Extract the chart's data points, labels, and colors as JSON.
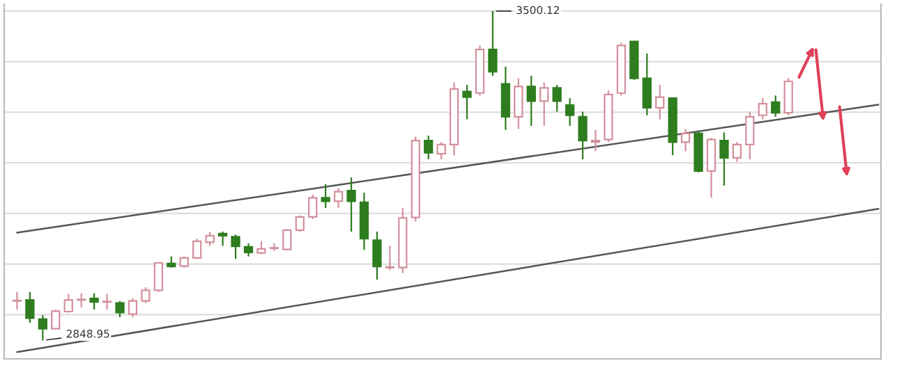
{
  "chart_data": {
    "type": "candlestick",
    "categories": [
      null,
      null,
      null,
      null,
      null,
      null,
      null,
      null,
      null,
      null,
      null,
      null,
      null,
      null,
      null,
      null,
      null,
      null,
      null,
      null,
      null,
      null,
      null,
      null,
      null,
      null,
      null,
      null,
      null,
      null,
      null,
      null,
      null,
      null,
      null,
      null,
      null,
      null,
      null,
      null,
      null,
      null,
      null,
      null,
      null,
      null,
      null,
      null,
      null,
      null,
      null,
      null,
      null,
      null,
      null,
      null,
      null,
      null,
      null,
      null,
      null,
      null,
      null,
      null,
      null,
      null,
      null,
      null
    ],
    "ohlc": [
      [
        2927,
        2945,
        2910,
        2928
      ],
      [
        2929,
        2945,
        2884,
        2893
      ],
      [
        2891,
        2899,
        2848.95,
        2872
      ],
      [
        2872,
        2910,
        2871,
        2907
      ],
      [
        2906,
        2941,
        2904,
        2929
      ],
      [
        2929,
        2942,
        2914,
        2930
      ],
      [
        2932,
        2942,
        2910,
        2925
      ],
      [
        2925,
        2941,
        2910,
        2926
      ],
      [
        2923,
        2927,
        2895,
        2904
      ],
      [
        2901,
        2932,
        2895,
        2927
      ],
      [
        2927,
        2954,
        2923,
        2948
      ],
      [
        2948,
        3003,
        2945,
        3002
      ],
      [
        3001,
        3015,
        2993,
        2995
      ],
      [
        2996,
        3015,
        2993,
        3012
      ],
      [
        3012,
        3050,
        3010,
        3045
      ],
      [
        3043,
        3063,
        3036,
        3056
      ],
      [
        3060,
        3064,
        3036,
        3056
      ],
      [
        3054,
        3058,
        3010,
        3035
      ],
      [
        3034,
        3041,
        3015,
        3023
      ],
      [
        3022,
        3045,
        3019,
        3030
      ],
      [
        3031,
        3041,
        3026,
        3032
      ],
      [
        3029,
        3069,
        3027,
        3067
      ],
      [
        3067,
        3096,
        3064,
        3093
      ],
      [
        3093,
        3137,
        3089,
        3131
      ],
      [
        3131,
        3158,
        3111,
        3124
      ],
      [
        3124,
        3150,
        3111,
        3143
      ],
      [
        3145,
        3171,
        3064,
        3124
      ],
      [
        3122,
        3141,
        3028,
        3050
      ],
      [
        3047,
        3064,
        2969,
        2995
      ],
      [
        2993,
        3036,
        2988,
        2994
      ],
      [
        2993,
        3111,
        2982,
        3091
      ],
      [
        3092,
        3252,
        3084,
        3244
      ],
      [
        3244,
        3254,
        3207,
        3220
      ],
      [
        3218,
        3241,
        3207,
        3236
      ],
      [
        3236,
        3359,
        3215,
        3346
      ],
      [
        3341,
        3354,
        3286,
        3330
      ],
      [
        3338,
        3432,
        3333,
        3424
      ],
      [
        3424,
        3500.12,
        3372,
        3380
      ],
      [
        3356,
        3390,
        3265,
        3291
      ],
      [
        3291,
        3367,
        3267,
        3351
      ],
      [
        3351,
        3372,
        3273,
        3322
      ],
      [
        3322,
        3359,
        3273,
        3348
      ],
      [
        3348,
        3354,
        3301,
        3322
      ],
      [
        3314,
        3328,
        3273,
        3294
      ],
      [
        3291,
        3301,
        3207,
        3244
      ],
      [
        3241,
        3265,
        3223,
        3244
      ],
      [
        3246,
        3343,
        3241,
        3335
      ],
      [
        3338,
        3437,
        3333,
        3432
      ],
      [
        3440,
        3440,
        3364,
        3367
      ],
      [
        3367,
        3416,
        3294,
        3309
      ],
      [
        3309,
        3354,
        3286,
        3330
      ],
      [
        3328,
        3328,
        3215,
        3241
      ],
      [
        3241,
        3267,
        3223,
        3258
      ],
      [
        3258,
        3262,
        3181,
        3184
      ],
      [
        3184,
        3249,
        3131,
        3246
      ],
      [
        3244,
        3260,
        3155,
        3210
      ],
      [
        3210,
        3241,
        3202,
        3236
      ],
      [
        3236,
        3301,
        3207,
        3291
      ],
      [
        3294,
        3328,
        3286,
        3317
      ],
      [
        3320,
        3333,
        3291,
        3299
      ],
      [
        3299,
        3367,
        3294,
        3361
      ],
      null,
      null,
      null,
      null,
      null,
      null,
      null
    ],
    "colors": [
      "#d4909c",
      "#2e7d1f",
      "#2e7d1f",
      "#d4909c",
      "#d4909c",
      "#d4909c",
      "#2e7d1f",
      "#d4909c",
      "#2e7d1f",
      "#d4909c",
      "#d4909c",
      "#d4909c",
      "#2e7d1f",
      "#d4909c",
      "#d4909c",
      "#d4909c",
      "#2e7d1f",
      "#2e7d1f",
      "#2e7d1f",
      "#d4909c",
      "#d4909c",
      "#d4909c",
      "#d4909c",
      "#d4909c",
      "#2e7d1f",
      "#d4909c",
      "#2e7d1f",
      "#2e7d1f",
      "#2e7d1f",
      "#d4909c",
      "#d4909c",
      "#d4909c",
      "#2e7d1f",
      "#d4909c",
      "#d4909c",
      "#2e7d1f",
      "#d4909c",
      "#2e7d1f",
      "#2e7d1f",
      "#d4909c",
      "#2e7d1f",
      "#d4909c",
      "#2e7d1f",
      "#2e7d1f",
      "#2e7d1f",
      "#d4909c",
      "#d4909c",
      "#d4909c",
      "#2e7d1f",
      "#2e7d1f",
      "#d4909c",
      "#2e7d1f",
      "#d4909c",
      "#2e7d1f",
      "#d4909c",
      "#2e7d1f",
      "#d4909c",
      "#d4909c",
      "#d4909c",
      "#2e7d1f",
      "#d4909c",
      null,
      null,
      null,
      null,
      null,
      null,
      null
    ],
    "series": [
      {
        "type": "line",
        "color": "#555555",
        "values": [
          3062,
          null,
          null,
          null,
          null,
          null,
          null,
          null,
          null,
          null,
          null,
          null,
          null,
          null,
          null,
          null,
          null,
          null,
          null,
          null,
          null,
          null,
          null,
          null,
          null,
          null,
          null,
          null,
          null,
          null,
          null,
          null,
          null,
          null,
          null,
          null,
          null,
          null,
          null,
          null,
          null,
          null,
          null,
          null,
          null,
          null,
          null,
          null,
          null,
          null,
          null,
          null,
          null,
          null,
          null,
          null,
          null,
          null,
          null,
          null,
          null,
          null,
          null,
          null,
          null,
          null,
          null,
          3315
        ]
      },
      {
        "type": "line",
        "color": "#555555",
        "values": [
          2826,
          null,
          null,
          null,
          null,
          null,
          null,
          null,
          null,
          null,
          null,
          null,
          null,
          null,
          null,
          null,
          null,
          null,
          null,
          null,
          null,
          null,
          null,
          null,
          null,
          null,
          null,
          null,
          null,
          null,
          null,
          null,
          null,
          null,
          null,
          null,
          null,
          null,
          null,
          null,
          null,
          null,
          null,
          null,
          null,
          null,
          null,
          null,
          null,
          null,
          null,
          null,
          null,
          null,
          null,
          null,
          null,
          null,
          null,
          null,
          null,
          null,
          null,
          null,
          null,
          null,
          null,
          3109
        ]
      }
    ],
    "annotations": [
      "3500.12",
      "2848.95"
    ],
    "grid": "y",
    "tick_labels": false
  }
}
